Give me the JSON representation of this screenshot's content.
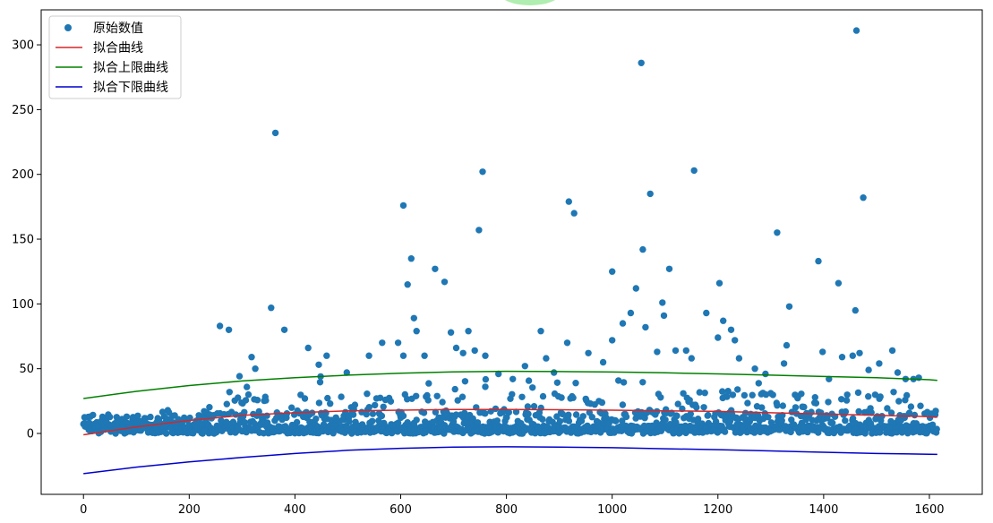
{
  "chart_data": {
    "type": "scatter",
    "title": "",
    "xlabel": "",
    "ylabel": "",
    "xlim": [
      -80,
      1700
    ],
    "ylim": [
      -47,
      327
    ],
    "x_ticks": [
      0,
      200,
      400,
      600,
      800,
      1000,
      1200,
      1400,
      1600
    ],
    "y_ticks": [
      0,
      50,
      100,
      150,
      200,
      250,
      300
    ],
    "grid": false,
    "legend_position": "top-left",
    "legend": [
      {
        "label": "原始数值",
        "kind": "marker",
        "color": "#1f77b4"
      },
      {
        "label": "拟合曲线",
        "kind": "line",
        "color": "#d62728"
      },
      {
        "label": "拟合上限曲线",
        "kind": "line",
        "color": "#008000"
      },
      {
        "label": "拟合下限曲线",
        "kind": "line",
        "color": "#0000cd"
      }
    ],
    "series": [
      {
        "name": "原始数值",
        "kind": "scatter",
        "color": "#1f77b4",
        "points": [
          [
            258,
            83
          ],
          [
            275,
            80
          ],
          [
            355,
            97
          ],
          [
            363,
            232
          ],
          [
            380,
            80
          ],
          [
            318,
            59
          ],
          [
            325,
            50
          ],
          [
            425,
            66
          ],
          [
            445,
            53
          ],
          [
            460,
            60
          ],
          [
            498,
            47
          ],
          [
            540,
            60
          ],
          [
            565,
            70
          ],
          [
            595,
            70
          ],
          [
            605,
            60
          ],
          [
            605,
            176
          ],
          [
            613,
            115
          ],
          [
            620,
            135
          ],
          [
            625,
            89
          ],
          [
            630,
            79
          ],
          [
            645,
            60
          ],
          [
            665,
            127
          ],
          [
            683,
            117
          ],
          [
            695,
            78
          ],
          [
            705,
            66
          ],
          [
            718,
            62
          ],
          [
            728,
            79
          ],
          [
            740,
            64
          ],
          [
            748,
            157
          ],
          [
            755,
            202
          ],
          [
            760,
            60
          ],
          [
            760,
            36
          ],
          [
            785,
            46
          ],
          [
            812,
            42
          ],
          [
            835,
            52
          ],
          [
            865,
            79
          ],
          [
            875,
            58
          ],
          [
            890,
            47
          ],
          [
            915,
            70
          ],
          [
            918,
            179
          ],
          [
            928,
            170
          ],
          [
            955,
            62
          ],
          [
            983,
            55
          ],
          [
            1000,
            125
          ],
          [
            1000,
            72
          ],
          [
            1020,
            85
          ],
          [
            1035,
            93
          ],
          [
            1045,
            112
          ],
          [
            1055,
            286
          ],
          [
            1058,
            142
          ],
          [
            1063,
            82
          ],
          [
            1072,
            185
          ],
          [
            1085,
            63
          ],
          [
            1095,
            101
          ],
          [
            1098,
            91
          ],
          [
            1108,
            127
          ],
          [
            1120,
            64
          ],
          [
            1140,
            64
          ],
          [
            1150,
            58
          ],
          [
            1155,
            203
          ],
          [
            1178,
            93
          ],
          [
            1200,
            74
          ],
          [
            1203,
            116
          ],
          [
            1210,
            87
          ],
          [
            1225,
            80
          ],
          [
            1232,
            72
          ],
          [
            1240,
            58
          ],
          [
            1270,
            50
          ],
          [
            1290,
            46
          ],
          [
            1312,
            155
          ],
          [
            1325,
            54
          ],
          [
            1330,
            68
          ],
          [
            1335,
            98
          ],
          [
            1390,
            133
          ],
          [
            1398,
            63
          ],
          [
            1410,
            42
          ],
          [
            1428,
            116
          ],
          [
            1435,
            59
          ],
          [
            1455,
            60
          ],
          [
            1460,
            95
          ],
          [
            1462,
            311
          ],
          [
            1468,
            62
          ],
          [
            1475,
            182
          ],
          [
            1485,
            49
          ],
          [
            1505,
            54
          ],
          [
            1530,
            64
          ],
          [
            1540,
            47
          ],
          [
            1555,
            42
          ],
          [
            1570,
            42
          ],
          [
            1580,
            43
          ]
        ]
      },
      {
        "name": "拟合曲线",
        "kind": "line",
        "color": "#d62728",
        "x": [
          0,
          100,
          200,
          300,
          400,
          500,
          600,
          700,
          800,
          900,
          1000,
          1100,
          1200,
          1300,
          1400,
          1500,
          1600,
          1615
        ],
        "y": [
          -1,
          5,
          10,
          14,
          16,
          17.5,
          18,
          18.5,
          18.5,
          18.3,
          18,
          17.5,
          17,
          16,
          15,
          14,
          13,
          12.5
        ]
      },
      {
        "name": "拟合上限曲线",
        "kind": "line",
        "color": "#008000",
        "x": [
          0,
          100,
          200,
          300,
          400,
          500,
          600,
          700,
          800,
          900,
          1000,
          1100,
          1200,
          1300,
          1400,
          1500,
          1600,
          1615
        ],
        "y": [
          27,
          32.5,
          37,
          40.5,
          43,
          45,
          46.5,
          47.5,
          48,
          47.8,
          47.4,
          46.8,
          46,
          45,
          44,
          43,
          41.5,
          41
        ]
      },
      {
        "name": "拟合下限曲线",
        "kind": "line",
        "color": "#0000cd",
        "x": [
          0,
          100,
          200,
          300,
          400,
          500,
          600,
          700,
          800,
          900,
          1000,
          1100,
          1200,
          1300,
          1400,
          1500,
          1600,
          1615
        ],
        "y": [
          -31,
          -26,
          -22,
          -18.5,
          -15.5,
          -13,
          -11.5,
          -10.5,
          -10.3,
          -10.5,
          -11,
          -11.8,
          -12.5,
          -13.5,
          -14.5,
          -15.5,
          -16,
          -16.2
        ]
      }
    ]
  }
}
